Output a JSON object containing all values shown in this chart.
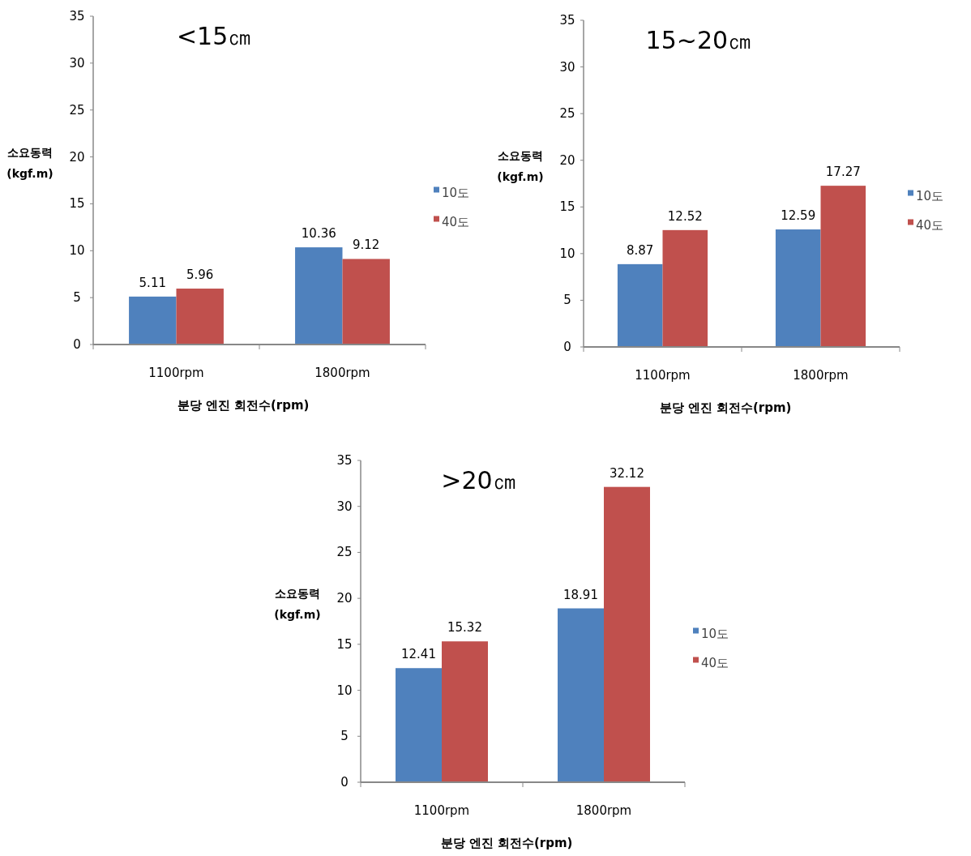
{
  "chart_data": [
    {
      "type": "bar",
      "title": "<15㎝",
      "xlabel": "분당 엔진 회전수(rpm)",
      "ylabel": "소요동력\n(kgf.m)",
      "categories": [
        "1100rpm",
        "1800rpm"
      ],
      "series": [
        {
          "name": "10도",
          "color": "#4f81bd",
          "values": [
            5.11,
            10.36
          ]
        },
        {
          "name": "40도",
          "color": "#c0504d",
          "values": [
            5.96,
            9.12
          ]
        }
      ],
      "ylim": [
        0,
        35
      ],
      "yticks": [
        0,
        5,
        10,
        15,
        20,
        25,
        30,
        35
      ],
      "data_labels": true,
      "legend": "right",
      "grid": false
    },
    {
      "type": "bar",
      "title": "15~20㎝",
      "xlabel": "분당 엔진 회전수(rpm)",
      "ylabel": "소요동력\n(kgf.m)",
      "categories": [
        "1100rpm",
        "1800rpm"
      ],
      "series": [
        {
          "name": "10도",
          "color": "#4f81bd",
          "values": [
            8.87,
            12.59
          ]
        },
        {
          "name": "40도",
          "color": "#c0504d",
          "values": [
            12.52,
            17.27
          ]
        }
      ],
      "ylim": [
        0,
        35
      ],
      "yticks": [
        0,
        5,
        10,
        15,
        20,
        25,
        30,
        35
      ],
      "data_labels": true,
      "legend": "right",
      "grid": false
    },
    {
      "type": "bar",
      "title": ">20㎝",
      "xlabel": "분당 엔진 회전수(rpm)",
      "ylabel": "소요동력\n(kgf.m)",
      "categories": [
        "1100rpm",
        "1800rpm"
      ],
      "series": [
        {
          "name": "10도",
          "color": "#4f81bd",
          "values": [
            12.41,
            18.91
          ]
        },
        {
          "name": "40도",
          "color": "#c0504d",
          "values": [
            15.32,
            32.12
          ]
        }
      ],
      "ylim": [
        0,
        35
      ],
      "yticks": [
        0,
        5,
        10,
        15,
        20,
        25,
        30,
        35
      ],
      "data_labels": true,
      "legend": "right",
      "grid": false
    }
  ]
}
